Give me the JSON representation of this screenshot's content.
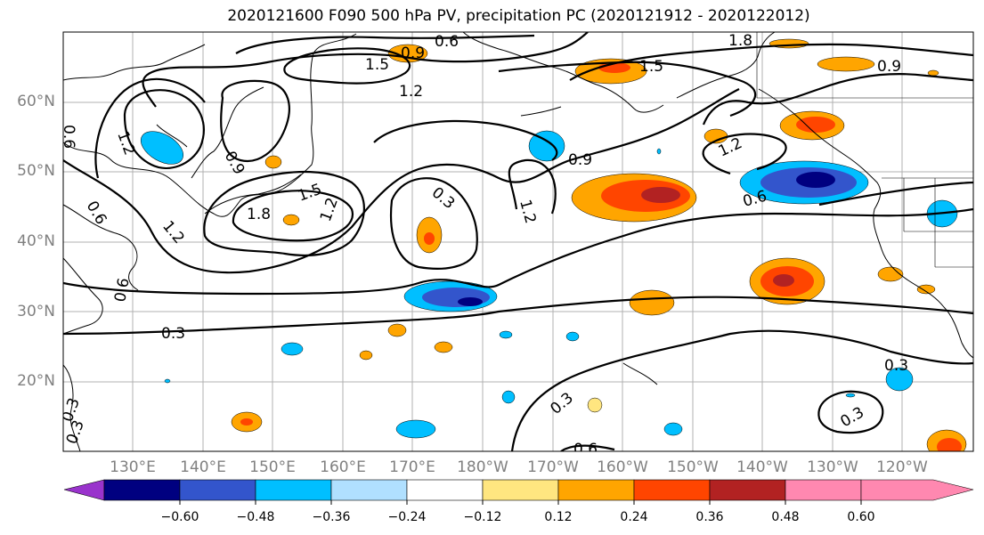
{
  "title": "2020121600 F090 500 hPa PV, precipitation PC (2020121912 - 2020122012)",
  "lat_labels": [
    "60°N",
    "50°N",
    "40°N",
    "30°N",
    "20°N"
  ],
  "lon_labels": [
    "130°E",
    "140°E",
    "150°E",
    "160°E",
    "170°E",
    "180°W",
    "170°W",
    "160°W",
    "150°W",
    "140°W",
    "130°W",
    "120°W"
  ],
  "contour_labels": [
    "0.6",
    "1.8",
    "0.9",
    "1.5",
    "1.5",
    "1.2",
    "0.9",
    "1.2",
    "0.6",
    "0.9",
    "0.9",
    "1.2",
    "1.5",
    "1.8",
    "1.2",
    "0.6",
    "0.3",
    "1.2",
    "0.3",
    "0.3",
    "0.6",
    "0.3",
    "0.3",
    "0.6",
    "0.6",
    "1.2",
    "0.3",
    "0.3"
  ],
  "colorbar": {
    "ticks": [
      "−0.60",
      "−0.48",
      "−0.36",
      "−0.24",
      "−0.12",
      "0.12",
      "0.24",
      "0.36",
      "0.48",
      "0.60"
    ],
    "colors": [
      "#9933cc",
      "#000080",
      "#3355cc",
      "#00bfff",
      "#b0e0ff",
      "#ffffff",
      "#ffe680",
      "#ffa500",
      "#ff4500",
      "#b22222",
      "#ff88b0"
    ]
  }
}
